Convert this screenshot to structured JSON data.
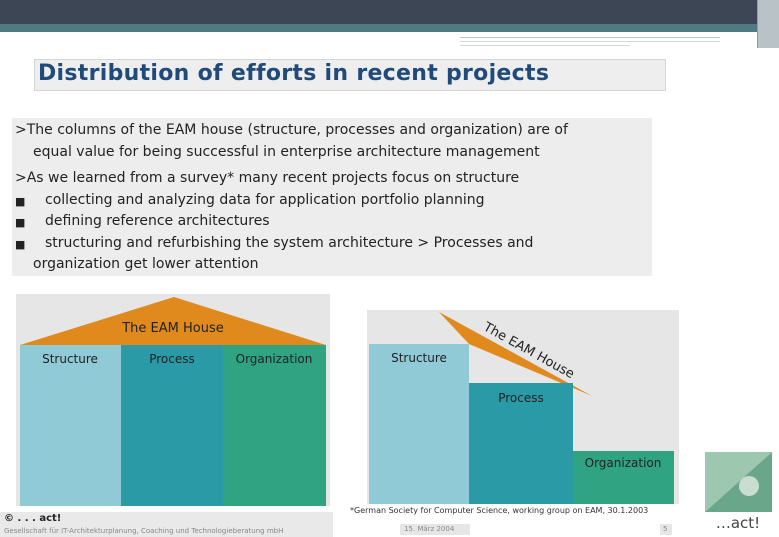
{
  "slide": {
    "title": "Distribution of efforts in recent projects",
    "paragraph1": [
      ">The columns of the EAM house (structure, processes and organization) are of",
      "equal value for being successful in enterprise architecture management"
    ],
    "paragraph2_intro": ">As we learned from a survey* many recent projects focus on structure",
    "bullet_symbol": "■",
    "bullets": [
      "collecting and analyzing data for application portfolio planning",
      "defining reference architectures",
      "structuring and refurbishing the system architecture > Processes and"
    ],
    "continuation": "organization get lower attention"
  },
  "diagram_left": {
    "roof_label": "The EAM House",
    "columns": [
      "Structure",
      "Process",
      "Organization"
    ]
  },
  "diagram_right": {
    "roof_label": "The EAM House",
    "columns": [
      "Structure",
      "Process",
      "Organization"
    ]
  },
  "colors": {
    "roof": "#e08a1e",
    "structure": "#8fcad6",
    "process": "#2a9aa6",
    "organization": "#2fa382",
    "title": "#1f4a7a"
  },
  "footer": {
    "copyright": "© . . . act!",
    "company": "Gesellschaft für IT-Architekturplanung, Coaching und Technologieberatung mbH",
    "date": "15. März 2004",
    "page": "5",
    "footnote": "*German Society for Computer Science, working group on EAM, 30.1.2003"
  },
  "logo": {
    "text": "…act!"
  }
}
